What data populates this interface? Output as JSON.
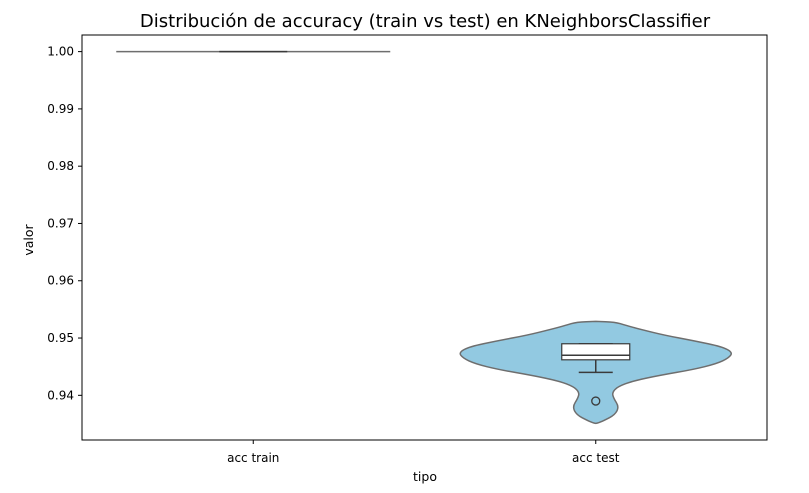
{
  "chart_data": {
    "type": "violin",
    "title": "Distribución de accuracy (train vs test) en KNeighborsClassifier",
    "xlabel": "tipo",
    "ylabel": "valor",
    "categories": [
      "acc train",
      "acc test"
    ],
    "ylim": [
      0.9322,
      1.0029
    ],
    "yticks": [
      0.94,
      0.95,
      0.96,
      0.97,
      0.98,
      0.99,
      1.0
    ],
    "ytick_labels": [
      "0.94",
      "0.95",
      "0.96",
      "0.97",
      "0.98",
      "0.99",
      "1.00"
    ],
    "grid": false,
    "colors": {
      "violin_fill": "#92c9e1",
      "violin_edge": "#6e6e6e",
      "box_fill": "#ffffff",
      "box_edge": "#3a3a3a",
      "axes": "#000000"
    },
    "violins": [
      {
        "category": "acc train",
        "box": {
          "q1": 1.0,
          "median": 1.0,
          "q3": 1.0,
          "whisker_low": 1.0,
          "whisker_high": 1.0
        },
        "outliers": [],
        "density": [
          [
            1.0,
            1.0
          ]
        ]
      },
      {
        "category": "acc test",
        "box": {
          "q1": 0.9462,
          "median": 0.947,
          "q3": 0.949,
          "whisker_low": 0.944,
          "whisker_high": 0.949
        },
        "outliers": [
          0.939
        ],
        "density": [
          [
            0.9351,
            0.01
          ],
          [
            0.9356,
            0.06
          ],
          [
            0.9366,
            0.14
          ],
          [
            0.938,
            0.17
          ],
          [
            0.9395,
            0.13
          ],
          [
            0.9405,
            0.12
          ],
          [
            0.9415,
            0.16
          ],
          [
            0.9425,
            0.27
          ],
          [
            0.9435,
            0.47
          ],
          [
            0.9445,
            0.71
          ],
          [
            0.9455,
            0.88
          ],
          [
            0.9465,
            0.97
          ],
          [
            0.9475,
            1.0
          ],
          [
            0.9485,
            0.92
          ],
          [
            0.9495,
            0.72
          ],
          [
            0.9505,
            0.5
          ],
          [
            0.9515,
            0.33
          ],
          [
            0.9522,
            0.22
          ],
          [
            0.9528,
            0.14
          ],
          [
            0.9529,
            0.0
          ]
        ]
      }
    ]
  }
}
